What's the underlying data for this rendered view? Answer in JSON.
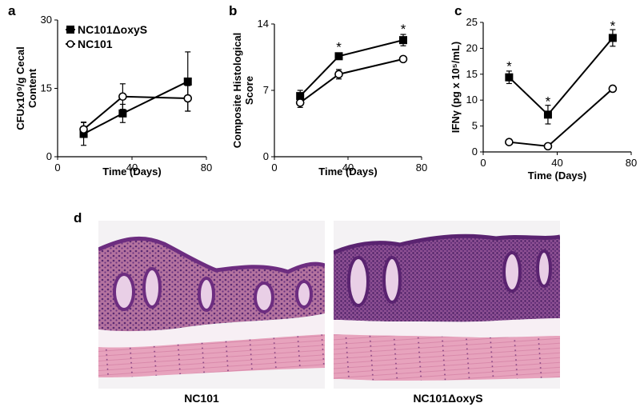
{
  "figure": {
    "panel_labels": {
      "a": "a",
      "b": "b",
      "c": "c",
      "d": "d"
    },
    "legend": {
      "mutant": "NC101ΔoxyS",
      "wildtype": "NC101"
    },
    "micrographs": [
      {
        "caption": "NC101"
      },
      {
        "caption": "NC101ΔoxyS"
      }
    ]
  },
  "chart_data": [
    {
      "type": "line",
      "panel": "a",
      "title": "",
      "xlabel": "Time (Days)",
      "ylabel_line1": "CFUx10⁹/g Cecal",
      "ylabel_line2": "Content",
      "xlim": [
        0,
        80
      ],
      "ylim": [
        0,
        30
      ],
      "xticks": [
        0,
        40,
        80
      ],
      "yticks": [
        0,
        15,
        30
      ],
      "legend_position": "top-left",
      "series": [
        {
          "name": "NC101ΔoxyS",
          "marker": "square-filled",
          "x": [
            14,
            35,
            70
          ],
          "y": [
            5.0,
            9.5,
            16.5
          ],
          "err_up": [
            2.5,
            2.0,
            6.5
          ],
          "err_down": [
            2.5,
            2.0,
            6.5
          ]
        },
        {
          "name": "NC101",
          "marker": "circle-open",
          "x": [
            14,
            35,
            70
          ],
          "y": [
            6.0,
            13.2,
            12.8
          ],
          "err_up": [
            1.6,
            2.8,
            2.8
          ],
          "err_down": [
            1.6,
            2.8,
            2.8
          ]
        }
      ],
      "annotations": []
    },
    {
      "type": "line",
      "panel": "b",
      "title": "",
      "xlabel": "Time (Days)",
      "ylabel_line1": "Composite Histological",
      "ylabel_line2": "Score",
      "xlim": [
        0,
        80
      ],
      "ylim": [
        0,
        14
      ],
      "xticks": [
        0,
        40,
        80
      ],
      "yticks": [
        0,
        7,
        14
      ],
      "series": [
        {
          "name": "NC101ΔoxyS",
          "marker": "square-filled",
          "x": [
            14,
            35,
            70
          ],
          "y": [
            6.4,
            10.6,
            12.3
          ],
          "err_up": [
            0.6,
            0.2,
            0.6
          ],
          "err_down": [
            0.6,
            0.2,
            0.6
          ]
        },
        {
          "name": "NC101",
          "marker": "circle-open",
          "x": [
            14,
            35,
            70
          ],
          "y": [
            5.7,
            8.7,
            10.3
          ],
          "err_up": [
            0.5,
            0.5,
            0.2
          ],
          "err_down": [
            0.5,
            0.5,
            0.2
          ]
        }
      ],
      "annotations": [
        {
          "text": "*",
          "x": 35,
          "y": 11.6
        },
        {
          "text": "*",
          "x": 70,
          "y": 13.5
        }
      ]
    },
    {
      "type": "line",
      "panel": "c",
      "title": "",
      "xlabel": "Time (Days)",
      "ylabel": "IFNγ (pg x 10⁵/mL)",
      "xlim": [
        0,
        80
      ],
      "ylim": [
        0,
        25
      ],
      "xticks": [
        0,
        40,
        80
      ],
      "yticks": [
        0,
        5,
        10,
        15,
        20,
        25
      ],
      "series": [
        {
          "name": "NC101ΔoxyS",
          "marker": "square-filled",
          "x": [
            14,
            35,
            70
          ],
          "y": [
            14.4,
            7.2,
            22.0
          ],
          "err_up": [
            1.2,
            1.8,
            1.6
          ],
          "err_down": [
            1.2,
            1.8,
            1.6
          ]
        },
        {
          "name": "NC101",
          "marker": "circle-open",
          "x": [
            14,
            35,
            70
          ],
          "y": [
            1.9,
            1.1,
            12.2
          ],
          "err_up": [
            0.5,
            0.2,
            0.2
          ],
          "err_down": [
            0.5,
            0.2,
            0.2
          ]
        }
      ],
      "annotations": [
        {
          "text": "*",
          "x": 14,
          "y": 16.6
        },
        {
          "text": "*",
          "x": 35,
          "y": 9.8
        },
        {
          "text": "*",
          "x": 70,
          "y": 24.4
        }
      ]
    }
  ]
}
